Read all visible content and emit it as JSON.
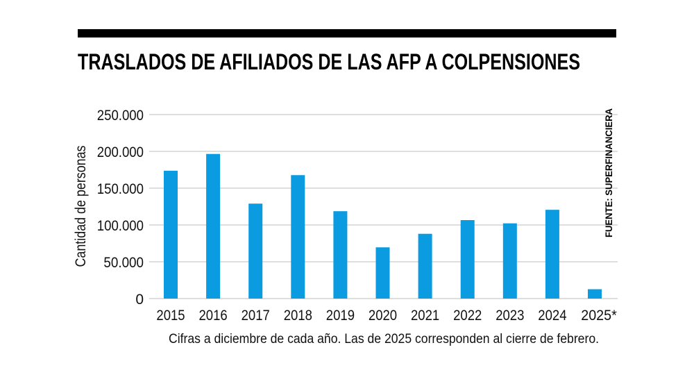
{
  "chart_data": {
    "type": "bar",
    "title": "TRASLADOS DE AFILIADOS DE LAS AFP A COLPENSIONES",
    "ylabel": "Cantidad de personas",
    "xlabel": "",
    "categories": [
      "2015",
      "2016",
      "2017",
      "2018",
      "2019",
      "2020",
      "2021",
      "2022",
      "2023",
      "2024",
      "2025*"
    ],
    "values": [
      173700,
      196500,
      129000,
      167700,
      118700,
      69600,
      88000,
      106600,
      102200,
      120600,
      12700
    ],
    "ylim": [
      0,
      250000
    ],
    "yticks": [
      0,
      50000,
      100000,
      150000,
      200000,
      250000
    ],
    "ytick_labels": [
      "0",
      "50.000",
      "100.000",
      "150.000",
      "200.000",
      "250.000"
    ],
    "grid": true,
    "bar_color": "#0a9be0",
    "source": "FUENTE: SUPERFINANCIERA",
    "footnote": "Cifras a diciembre de cada año. Las de 2025 corresponden al cierre de febrero."
  }
}
